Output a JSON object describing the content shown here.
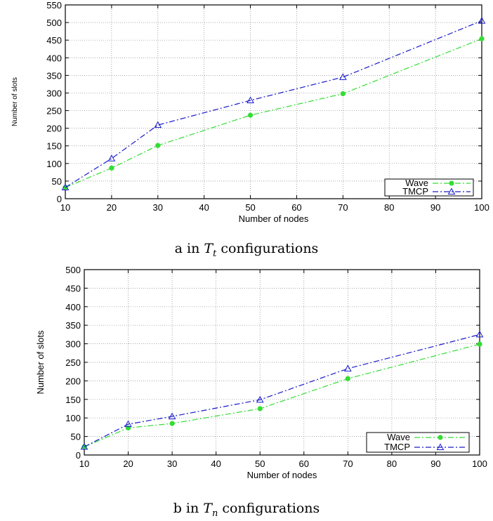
{
  "chart_data": [
    {
      "type": "line",
      "x": [
        10,
        20,
        30,
        50,
        70,
        100
      ],
      "series": [
        {
          "name": "Wave",
          "values": [
            32,
            87,
            151,
            237,
            298,
            454
          ],
          "color": "#33dd33",
          "marker": "circle"
        },
        {
          "name": "TMCP",
          "values": [
            32,
            114,
            209,
            279,
            345,
            505
          ],
          "color": "#1a1acc",
          "marker": "triangle"
        }
      ],
      "xlabel": "Number of nodes",
      "ylabel": "Number of slots",
      "xlim": [
        10,
        100
      ],
      "ylim": [
        0,
        550
      ],
      "xticks": [
        10,
        20,
        30,
        40,
        50,
        60,
        70,
        80,
        90,
        100
      ],
      "yticks": [
        0,
        50,
        100,
        150,
        200,
        250,
        300,
        350,
        400,
        450,
        500,
        550
      ],
      "grid": true,
      "legend_position": "bottom-right"
    },
    {
      "type": "line",
      "x": [
        10,
        20,
        30,
        50,
        70,
        100
      ],
      "series": [
        {
          "name": "Wave",
          "values": [
            22,
            73,
            85,
            125,
            206,
            299
          ],
          "color": "#33dd33",
          "marker": "circle"
        },
        {
          "name": "TMCP",
          "values": [
            22,
            83,
            104,
            149,
            233,
            325
          ],
          "color": "#1a1acc",
          "marker": "triangle"
        }
      ],
      "xlabel": "Number of nodes",
      "ylabel": "Number of slots",
      "xlim": [
        10,
        100
      ],
      "ylim": [
        0,
        500
      ],
      "xticks": [
        10,
        20,
        30,
        40,
        50,
        60,
        70,
        80,
        90,
        100
      ],
      "yticks": [
        0,
        50,
        100,
        150,
        200,
        250,
        300,
        350,
        400,
        450,
        500
      ],
      "grid": true,
      "legend_position": "bottom-right"
    }
  ],
  "captions": [
    {
      "prefix": "a in ",
      "symbol": "T",
      "subscript": "t",
      "suffix": " configurations"
    },
    {
      "prefix": "b in ",
      "symbol": "T",
      "subscript": "n",
      "suffix": " configurations"
    }
  ]
}
